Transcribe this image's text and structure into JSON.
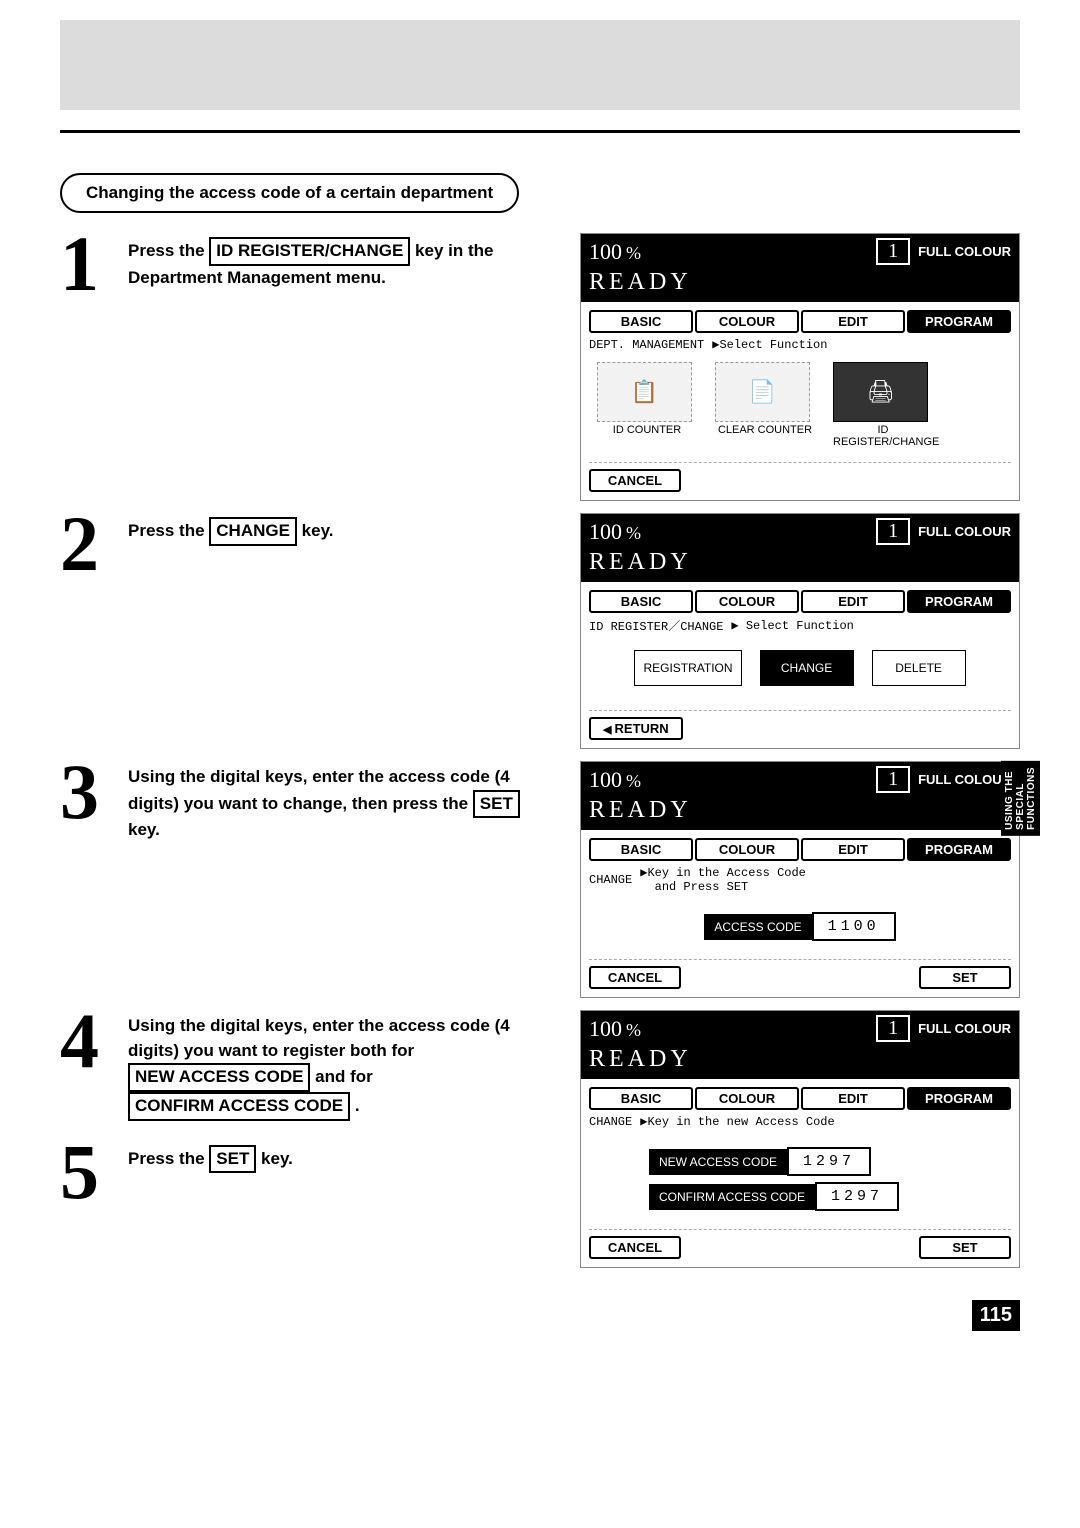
{
  "section_title": "Changing the access code of a certain department",
  "steps": {
    "s1": {
      "num": "1",
      "pre": "Press the ",
      "key": "ID REGISTER/CHANGE",
      "post": " key in the Department Management menu."
    },
    "s2": {
      "num": "2",
      "pre": "Press the ",
      "key": "CHANGE",
      "post": " key."
    },
    "s3": {
      "num": "3",
      "pre": "Using the digital keys, enter the access code (4 digits) you want to change, then press the ",
      "key": "SET",
      "post": " key."
    },
    "s4": {
      "num": "4",
      "pre": "Using the digital keys, enter the access code (4 digits) you want to register both for ",
      "key1": "NEW ACCESS CODE",
      "mid": " and for ",
      "key2": "CONFIRM ACCESS CODE",
      "post": " ."
    },
    "s5": {
      "num": "5",
      "pre": "Press the ",
      "key": "SET",
      "post": " key."
    }
  },
  "lcd_common": {
    "ratio": "100",
    "pct": "%",
    "copies": "1",
    "full_colour": "FULL COLOUR",
    "ready": "READY",
    "tabs": {
      "basic": "BASIC",
      "colour": "COLOUR",
      "edit": "EDIT",
      "program": "PROGRAM"
    }
  },
  "lcd1": {
    "subline_left": "DEPT. MANAGEMENT",
    "subline_right": "▶Select Function",
    "funcs": {
      "a": "ID COUNTER",
      "b": "CLEAR COUNTER",
      "c": "ID REGISTER/CHANGE"
    },
    "cancel": "CANCEL"
  },
  "lcd2": {
    "subline_left": "ID REGISTER／CHANGE",
    "subline_right": "▶  Select Function",
    "acts": {
      "a": "REGISTRATION",
      "b": "CHANGE",
      "c": "DELETE"
    },
    "return": "RETURN"
  },
  "lcd3": {
    "subline_left": "CHANGE",
    "subline_right": "▶Key in the Access Code\n  and Press SET",
    "field_label": "ACCESS CODE",
    "field_val": "1100",
    "cancel": "CANCEL",
    "set": "SET"
  },
  "lcd4": {
    "subline_left": "CHANGE",
    "subline_right": "▶Key in the new Access Code",
    "f1_label": "NEW ACCESS CODE",
    "f1_val": "1297",
    "f2_label": "CONFIRM ACCESS CODE",
    "f2_val": "1297",
    "cancel": "CANCEL",
    "set": "SET"
  },
  "side_tab": "USING THE\nSPECIAL\nFUNCTIONS",
  "page_number": "115"
}
